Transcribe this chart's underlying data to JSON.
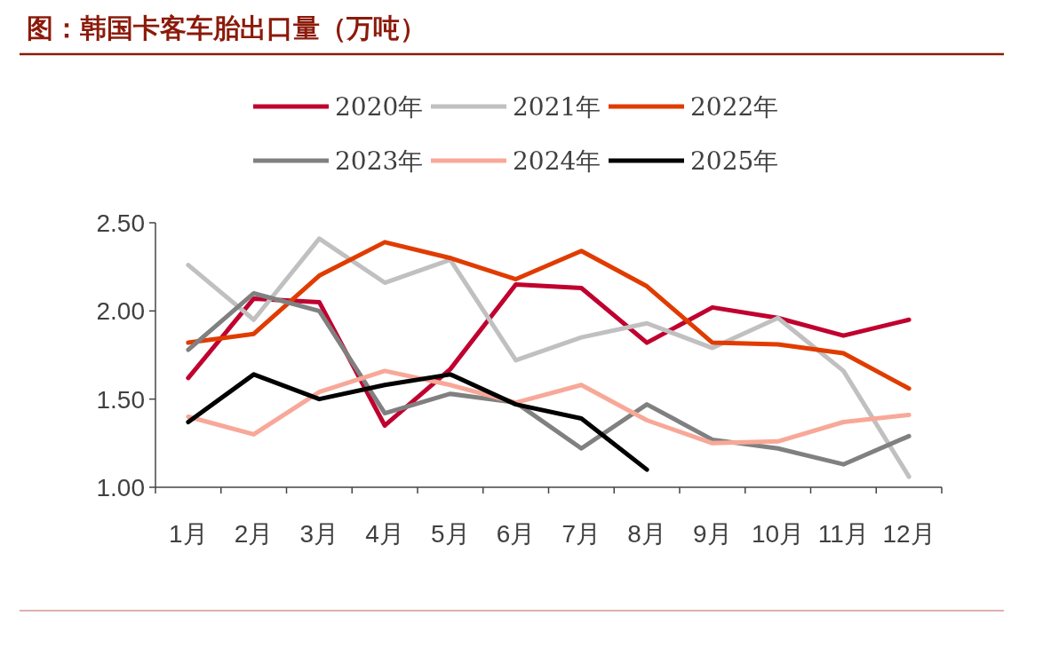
{
  "chart_data": {
    "type": "line",
    "title": "图：韩国卡客车胎出口量（万吨）",
    "categories": [
      "1月",
      "2月",
      "3月",
      "4月",
      "5月",
      "6月",
      "7月",
      "8月",
      "9月",
      "10月",
      "11月",
      "12月"
    ],
    "series": [
      {
        "name": "2020年",
        "color": "#c0002f",
        "values": [
          1.62,
          2.07,
          2.05,
          1.35,
          1.67,
          2.15,
          2.13,
          1.82,
          2.02,
          1.96,
          1.86,
          1.95
        ]
      },
      {
        "name": "2021年",
        "color": "#c0c0c0",
        "values": [
          2.26,
          1.95,
          2.41,
          2.16,
          2.29,
          1.72,
          1.85,
          1.93,
          1.79,
          1.96,
          1.66,
          1.06
        ]
      },
      {
        "name": "2022年",
        "color": "#e03c00",
        "values": [
          1.82,
          1.87,
          2.2,
          2.39,
          2.3,
          2.18,
          2.34,
          2.14,
          1.82,
          1.81,
          1.76,
          1.56
        ]
      },
      {
        "name": "2023年",
        "color": "#808080",
        "values": [
          1.78,
          2.1,
          2.0,
          1.42,
          1.53,
          1.48,
          1.22,
          1.47,
          1.27,
          1.22,
          1.13,
          1.29
        ]
      },
      {
        "name": "2024年",
        "color": "#f8a898",
        "values": [
          1.4,
          1.3,
          1.54,
          1.66,
          1.58,
          1.48,
          1.58,
          1.38,
          1.25,
          1.26,
          1.37,
          1.41
        ]
      },
      {
        "name": "2025年",
        "color": "#000000",
        "values": [
          1.37,
          1.64,
          1.5,
          1.58,
          1.64,
          1.47,
          1.39,
          1.1,
          null,
          null,
          null,
          null
        ]
      }
    ],
    "ylim": [
      1.0,
      2.5
    ],
    "yticks": [
      {
        "value": 1.0,
        "label": "1.00"
      },
      {
        "value": 1.5,
        "label": "1.50"
      },
      {
        "value": 2.0,
        "label": "2.00"
      },
      {
        "value": 2.5,
        "label": "2.50"
      }
    ],
    "legend": "top"
  }
}
